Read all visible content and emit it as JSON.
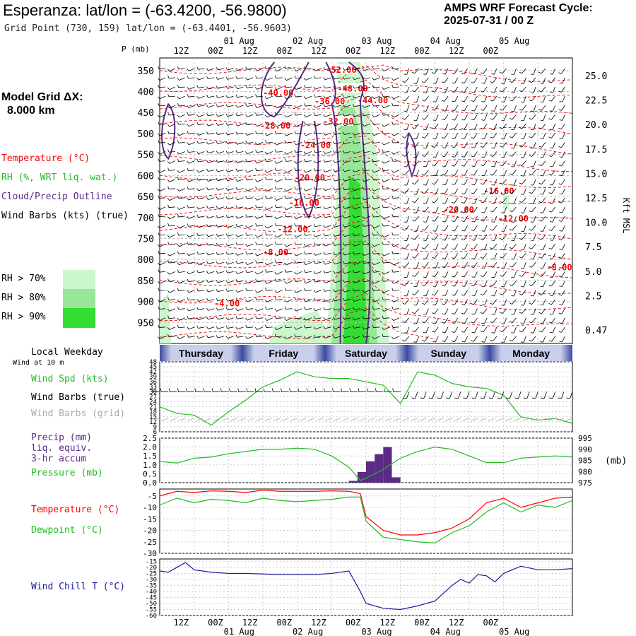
{
  "header": {
    "title": "Esperanza:  lat/lon = (-63.4200, -56.9800)",
    "subtitle": "Grid Point (730, 159) lat/lon = (-63.4401, -56.9603)",
    "cycle_line1": "AMPS WRF Forecast Cycle:",
    "cycle_line2": "2025-07-31 / 00  Z"
  },
  "sidebar": {
    "model_grid_1": "Model Grid ΔX:",
    "model_grid_2": "8.000 km",
    "temperature": "Temperature (°C)",
    "rh": "RH (%, WRT liq. wat.)",
    "cloud": "Cloud/Precip Outline",
    "wind": "Wind Barbs (kts) (true)",
    "rh70": "RH > 70%",
    "rh80": "RH > 80%",
    "rh90": "RH > 90%",
    "local_weekday": "Local Weekday",
    "wind_10m": "Wind at 10 m",
    "wind_spd": "Wind Spd (kts)",
    "wind_barbs_true": "Wind Barbs (true)",
    "wind_barbs_grid": "Wind Barbs (grid)",
    "precip1": "Precip (mm)",
    "precip2": "liq. equiv.",
    "precip3": "3-hr accum",
    "pressure": "Pressure (mb)",
    "temp2": "Temperature (°C)",
    "dew": "Dewpoint (°C)",
    "windchill": "Wind Chill T (°C)"
  },
  "colors": {
    "temperature": "#ff0000",
    "rh70": "#ccf7cc",
    "rh80": "#99e699",
    "rh90": "#33dd33",
    "cloud": "#5b2a86",
    "wind_spd": "#22bb22",
    "pressure": "#22bb22",
    "precip": "#5b2a86",
    "dewpoint": "#22bb22",
    "windchill": "#1a1aa0",
    "grid_barbs": "#aaaaaa"
  },
  "time_axis": {
    "ticks": [
      "12Z",
      "00Z",
      "12Z",
      "00Z",
      "12Z",
      "00Z",
      "12Z",
      "00Z",
      "12Z",
      "00Z"
    ],
    "dates": [
      "01 Aug",
      "02 Aug",
      "03 Aug",
      "04 Aug",
      "05 Aug"
    ],
    "days": [
      "Thursday",
      "Friday",
      "Saturday",
      "Sunday",
      "Monday"
    ]
  },
  "chart_data": [
    {
      "type": "heatmap",
      "name": "time-height cross section",
      "ylabel_left": "P (mb)",
      "ylabel_right": "Kft MSL",
      "pressure_ticks": [
        "350",
        "400",
        "450",
        "500",
        "550",
        "600",
        "650",
        "700",
        "750",
        "800",
        "850",
        "900",
        "950"
      ],
      "height_ticks": [
        "25.0",
        "22.5",
        "20.0",
        "17.5",
        "15.0",
        "12.5",
        "10.0",
        "7.5",
        "5.0",
        "2.5",
        "0.47"
      ],
      "temperature_labels": [
        {
          "text": "-52.00",
          "x_h": 58,
          "p": 355
        },
        {
          "text": "-48.00",
          "x_h": 62,
          "p": 400
        },
        {
          "text": "-40.00",
          "x_h": 36,
          "p": 410
        },
        {
          "text": "-36.00",
          "x_h": 54,
          "p": 430
        },
        {
          "text": "-44.00",
          "x_h": 69,
          "p": 428
        },
        {
          "text": "-32.00",
          "x_h": 57,
          "p": 478
        },
        {
          "text": "-28.00",
          "x_h": 35,
          "p": 488
        },
        {
          "text": "-24.00",
          "x_h": 49,
          "p": 535
        },
        {
          "text": "-20.00",
          "x_h": 47,
          "p": 612
        },
        {
          "text": "-16.00",
          "x_h": 45,
          "p": 672
        },
        {
          "text": "-12.00",
          "x_h": 41,
          "p": 735
        },
        {
          "text": "-8.00",
          "x_h": 36,
          "p": 790
        },
        {
          "text": "-4.00",
          "x_h": 19,
          "p": 912
        },
        {
          "text": "-16.00",
          "x_h": 113,
          "p": 644
        },
        {
          "text": "-20.00",
          "x_h": 99,
          "p": 689
        },
        {
          "text": "-12.00",
          "x_h": 118,
          "p": 710
        },
        {
          "text": "-8.00",
          "x_h": 135,
          "p": 826
        }
      ]
    },
    {
      "type": "line",
      "name": "Wind Spd (kts)",
      "yticks": [
        "48",
        "45",
        "42",
        "39",
        "36",
        "33",
        "30",
        "27",
        "24",
        "21",
        "18",
        "15",
        "12",
        "9",
        "6"
      ],
      "ylim": [
        6,
        48
      ],
      "x_hours": [
        0,
        6,
        12,
        18,
        24,
        30,
        36,
        42,
        48,
        54,
        60,
        66,
        72,
        78,
        84,
        90,
        96,
        102,
        108,
        114,
        120,
        126,
        132,
        138,
        144
      ],
      "values": [
        21,
        17,
        16,
        10,
        18,
        25,
        33,
        37,
        42,
        39,
        38,
        38,
        36,
        34,
        23,
        42,
        40,
        35,
        33,
        32,
        28,
        15,
        13,
        14,
        11
      ]
    },
    {
      "type": "bar",
      "name": "Precip (mm)",
      "yticks_left": [
        "2.5",
        "2.0",
        "1.5",
        "1.0",
        "0.5",
        "0.0"
      ],
      "ylim_left": [
        0,
        2.5
      ],
      "x_hours": [
        66,
        69,
        72,
        75,
        78,
        81
      ],
      "values": [
        0.1,
        0.6,
        1.2,
        1.6,
        2.0,
        0.3
      ]
    },
    {
      "type": "line",
      "name": "Pressure (mb)",
      "yticks_right": [
        "995",
        "990",
        "985",
        "980",
        "975"
      ],
      "ylabel_right": "(mb)",
      "ylim": [
        975,
        995
      ],
      "x_hours": [
        0,
        6,
        12,
        18,
        24,
        30,
        36,
        42,
        48,
        54,
        60,
        66,
        70,
        72,
        78,
        84,
        90,
        96,
        102,
        108,
        114,
        120,
        126,
        132,
        138,
        144
      ],
      "values": [
        984.5,
        983.8,
        986,
        986.5,
        988,
        989,
        990,
        990,
        990.5,
        990,
        987,
        982,
        976,
        977,
        981,
        986,
        989,
        991,
        990,
        987,
        984,
        984,
        986,
        986.5,
        987,
        986.5
      ]
    },
    {
      "type": "line",
      "name": "Temperature / Dewpoint",
      "yticks": [
        "-5",
        "-10",
        "-15",
        "-20",
        "-25",
        "-30"
      ],
      "ylim": [
        -30,
        -2
      ],
      "x_hours": [
        0,
        6,
        12,
        18,
        24,
        30,
        36,
        42,
        48,
        54,
        60,
        66,
        70,
        72,
        78,
        84,
        90,
        96,
        102,
        108,
        114,
        120,
        126,
        132,
        138,
        144
      ],
      "series": [
        {
          "name": "Temperature (°C)",
          "values": [
            -5,
            -3,
            -3.5,
            -2.8,
            -3,
            -3.5,
            -2.5,
            -3,
            -3,
            -3,
            -2.8,
            -3,
            -4,
            -14,
            -20,
            -22,
            -22,
            -21,
            -19,
            -15,
            -8,
            -6,
            -10,
            -8,
            -6,
            -5.5
          ]
        },
        {
          "name": "Dewpoint (°C)",
          "values": [
            -9,
            -6,
            -8,
            -6.5,
            -7,
            -8,
            -6,
            -7,
            -7.5,
            -7,
            -6.5,
            -5.5,
            -5.5,
            -16,
            -23,
            -24,
            -25,
            -25.5,
            -21,
            -18,
            -12,
            -8,
            -12,
            -9,
            -10,
            -7
          ]
        }
      ]
    },
    {
      "type": "line",
      "name": "Wind Chill T (°C)",
      "yticks": [
        "-15",
        "-20",
        "-25",
        "-30",
        "-35",
        "-40",
        "-45",
        "-50",
        "-55",
        "-60"
      ],
      "ylim": [
        -60,
        -13
      ],
      "x_hours": [
        0,
        3,
        6,
        9,
        12,
        18,
        24,
        30,
        36,
        42,
        48,
        54,
        60,
        66,
        70,
        72,
        78,
        84,
        90,
        96,
        102,
        105,
        108,
        111,
        114,
        117,
        120,
        126,
        132,
        138,
        144
      ],
      "values": [
        -23,
        -24,
        -20,
        -16,
        -22,
        -24,
        -25,
        -25,
        -25.5,
        -26,
        -26,
        -26,
        -25,
        -23,
        -40,
        -50,
        -54,
        -55,
        -52,
        -48,
        -35,
        -30,
        -33,
        -26,
        -27,
        -32,
        -25,
        -19,
        -22,
        -22,
        -21
      ]
    }
  ]
}
